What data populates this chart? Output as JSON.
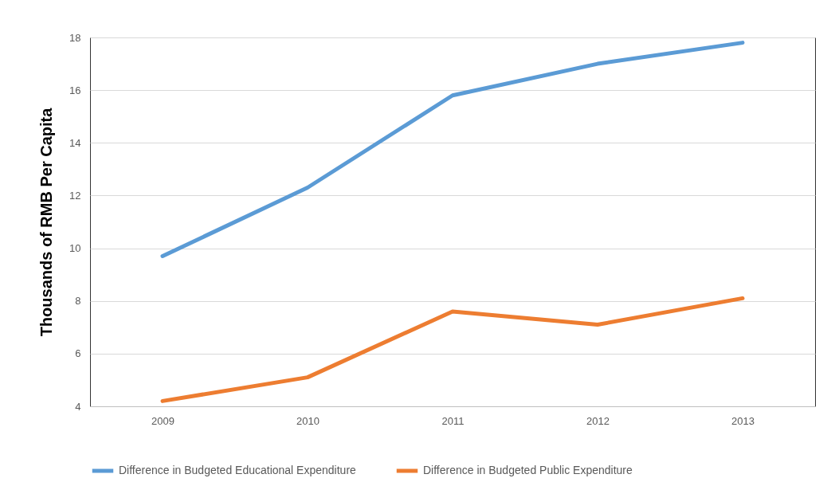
{
  "chart_data": {
    "type": "line",
    "ylabel": "Thousands of RMB Per Capita",
    "categories": [
      "2009",
      "2010",
      "2011",
      "2012",
      "2013"
    ],
    "series": [
      {
        "name": "Difference in Budgeted Educational Expenditure",
        "color": "#5b9bd5",
        "values": [
          9.7,
          12.3,
          15.8,
          17.0,
          17.8
        ]
      },
      {
        "name": "Difference in Budgeted Public Expenditure",
        "color": "#ed7d31",
        "values": [
          4.2,
          5.1,
          7.6,
          7.1,
          8.1
        ]
      }
    ],
    "ylim": [
      4,
      18
    ],
    "yticks": [
      4,
      6,
      8,
      10,
      12,
      14,
      16,
      18
    ],
    "grid": "y",
    "legend": "bottom",
    "line_style": "solid",
    "marker": "none"
  }
}
